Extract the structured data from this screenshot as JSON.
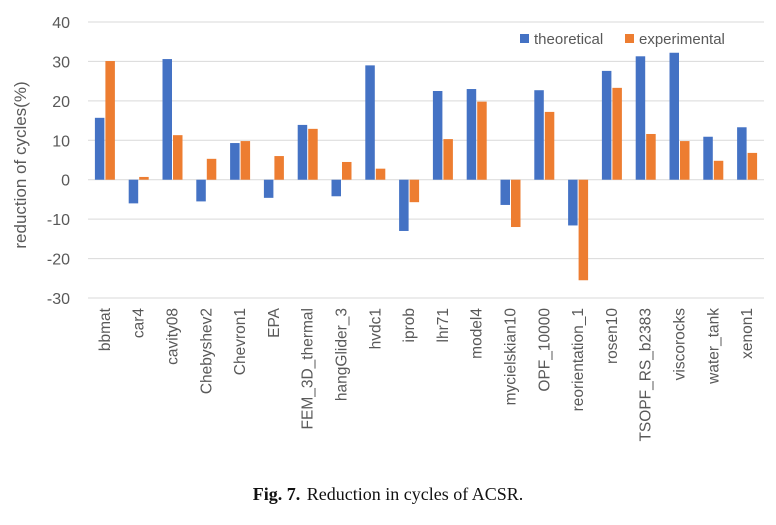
{
  "caption": {
    "label": "Fig. 7.",
    "text": "Reduction in cycles of ACSR."
  },
  "colors": {
    "theoretical": "#4472C4",
    "experimental": "#ED7D31",
    "grid": "#D9D9D9",
    "axis_text": "#595959"
  },
  "chart_data": {
    "type": "bar",
    "title": "",
    "xlabel": "",
    "ylabel": "reduction of cycles(%)",
    "ylim": [
      -30,
      40
    ],
    "yticks": [
      -30,
      -20,
      -10,
      0,
      10,
      20,
      30,
      40
    ],
    "grid": true,
    "legend_position": "top-right",
    "categories": [
      "bbmat",
      "car4",
      "cavity08",
      "Chebyshev2",
      "Chevron1",
      "EPA",
      "FEM_3D_thermal",
      "hangGlider_3",
      "hvdc1",
      "iprob",
      "lhr71",
      "model4",
      "mycielskian10",
      "OPF_10000",
      "reorientation_1",
      "rosen10",
      "TSOPF_RS_b2383",
      "viscorocks",
      "water_tank",
      "xenon1"
    ],
    "series": [
      {
        "name": "theoretical",
        "color": "#4472C4",
        "values": [
          15.7,
          -6.0,
          30.6,
          -5.5,
          9.3,
          -4.6,
          13.9,
          -4.2,
          29.0,
          -13.0,
          22.5,
          23.0,
          -6.4,
          22.7,
          -11.6,
          27.6,
          31.3,
          32.2,
          10.9,
          13.3
        ]
      },
      {
        "name": "experimental",
        "color": "#ED7D31",
        "values": [
          30.1,
          0.7,
          11.3,
          5.3,
          9.8,
          6.0,
          12.9,
          4.5,
          2.8,
          -5.7,
          10.3,
          19.8,
          -12.0,
          17.2,
          -25.5,
          23.3,
          11.6,
          9.8,
          4.8,
          6.8
        ]
      }
    ]
  }
}
